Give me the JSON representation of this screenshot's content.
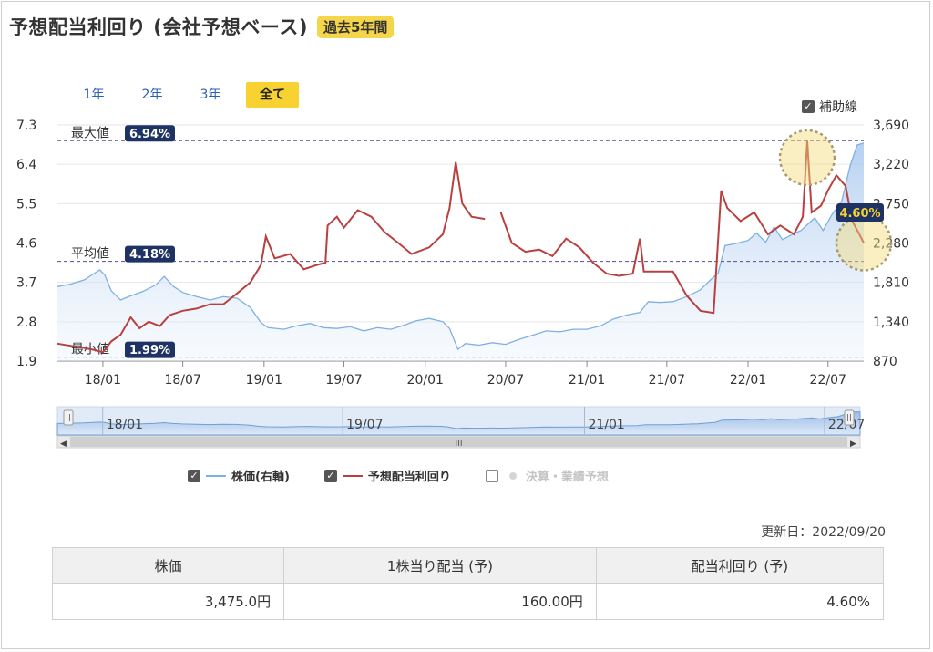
{
  "header": {
    "title": "予想配当利回り (会社予想ベース)",
    "period_badge": "過去5年間"
  },
  "range_tabs": [
    {
      "label": "1年",
      "active": false
    },
    {
      "label": "2年",
      "active": false
    },
    {
      "label": "3年",
      "active": false
    },
    {
      "label": "全て",
      "active": true
    }
  ],
  "aux_toggle": {
    "label": "補助線",
    "checked": true
  },
  "chart_data": {
    "type": "line",
    "left_axis": {
      "ticks": [
        "7.3",
        "6.4",
        "5.5",
        "4.6",
        "3.7",
        "2.8",
        "1.9"
      ],
      "min": 1.9,
      "max": 7.3
    },
    "right_axis": {
      "ticks": [
        "3,690",
        "3,220",
        "2,750",
        "2,280",
        "1,810",
        "1,340",
        "870"
      ],
      "min": 870,
      "max": 3690
    },
    "x_labels": [
      "18/01",
      "18/07",
      "19/01",
      "19/07",
      "20/01",
      "20/07",
      "21/01",
      "21/07",
      "22/01",
      "22/07"
    ],
    "reference_lines": [
      {
        "label": "最大値",
        "value": 6.94,
        "badge": "6.94%"
      },
      {
        "label": "平均値",
        "value": 4.18,
        "badge": "4.18%"
      },
      {
        "label": "最小値",
        "value": 1.99,
        "badge": "1.99%"
      }
    ],
    "current_badge": "4.60%",
    "series": [
      {
        "name": "株価(右軸)",
        "color": "#7fb0e2",
        "axis": "right",
        "points": [
          [
            "2017-09-20",
            1760
          ],
          [
            "2017-10-20",
            1790
          ],
          [
            "2017-11-20",
            1840
          ],
          [
            "2017-12-10",
            1910
          ],
          [
            "2017-12-25",
            1960
          ],
          [
            "2018-01-05",
            1900
          ],
          [
            "2018-01-20",
            1710
          ],
          [
            "2018-02-10",
            1600
          ],
          [
            "2018-03-05",
            1650
          ],
          [
            "2018-04-01",
            1700
          ],
          [
            "2018-05-01",
            1780
          ],
          [
            "2018-05-20",
            1880
          ],
          [
            "2018-06-10",
            1760
          ],
          [
            "2018-07-01",
            1690
          ],
          [
            "2018-08-01",
            1640
          ],
          [
            "2018-09-01",
            1600
          ],
          [
            "2018-10-01",
            1640
          ],
          [
            "2018-11-01",
            1620
          ],
          [
            "2018-12-01",
            1510
          ],
          [
            "2018-12-25",
            1330
          ],
          [
            "2019-01-10",
            1270
          ],
          [
            "2019-02-15",
            1250
          ],
          [
            "2019-03-15",
            1290
          ],
          [
            "2019-04-15",
            1320
          ],
          [
            "2019-05-15",
            1270
          ],
          [
            "2019-06-15",
            1260
          ],
          [
            "2019-07-15",
            1280
          ],
          [
            "2019-08-15",
            1230
          ],
          [
            "2019-09-15",
            1270
          ],
          [
            "2019-10-15",
            1250
          ],
          [
            "2019-11-15",
            1300
          ],
          [
            "2019-12-10",
            1350
          ],
          [
            "2020-01-10",
            1380
          ],
          [
            "2020-02-10",
            1340
          ],
          [
            "2020-02-25",
            1260
          ],
          [
            "2020-03-15",
            1010
          ],
          [
            "2020-04-01",
            1080
          ],
          [
            "2020-05-01",
            1060
          ],
          [
            "2020-06-01",
            1090
          ],
          [
            "2020-07-01",
            1070
          ],
          [
            "2020-08-01",
            1130
          ],
          [
            "2020-09-01",
            1180
          ],
          [
            "2020-10-01",
            1230
          ],
          [
            "2020-11-01",
            1220
          ],
          [
            "2020-12-01",
            1250
          ],
          [
            "2021-01-01",
            1250
          ],
          [
            "2021-02-01",
            1290
          ],
          [
            "2021-03-01",
            1370
          ],
          [
            "2021-04-01",
            1420
          ],
          [
            "2021-05-01",
            1450
          ],
          [
            "2021-05-20",
            1580
          ],
          [
            "2021-06-15",
            1570
          ],
          [
            "2021-07-15",
            1580
          ],
          [
            "2021-08-15",
            1640
          ],
          [
            "2021-09-15",
            1720
          ],
          [
            "2021-10-10",
            1850
          ],
          [
            "2021-10-25",
            1920
          ],
          [
            "2021-11-10",
            2250
          ],
          [
            "2021-12-01",
            2270
          ],
          [
            "2022-01-01",
            2310
          ],
          [
            "2022-01-20",
            2400
          ],
          [
            "2022-02-10",
            2290
          ],
          [
            "2022-03-01",
            2470
          ],
          [
            "2022-03-20",
            2320
          ],
          [
            "2022-04-10",
            2380
          ],
          [
            "2022-05-01",
            2430
          ],
          [
            "2022-06-01",
            2580
          ],
          [
            "2022-06-20",
            2430
          ],
          [
            "2022-07-10",
            2620
          ],
          [
            "2022-08-01",
            2780
          ],
          [
            "2022-08-20",
            3200
          ],
          [
            "2022-09-05",
            3450
          ],
          [
            "2022-09-20",
            3475
          ]
        ]
      },
      {
        "name": "予想配当利回り",
        "color": "#b94040",
        "axis": "left",
        "points": [
          [
            "2017-09-20",
            2.3
          ],
          [
            "2017-10-20",
            2.25
          ],
          [
            "2017-11-20",
            2.2
          ],
          [
            "2017-12-15",
            2.15
          ],
          [
            "2018-01-01",
            2.1
          ],
          [
            "2018-01-20",
            2.35
          ],
          [
            "2018-02-10",
            2.5
          ],
          [
            "2018-03-05",
            2.9
          ],
          [
            "2018-03-25",
            2.65
          ],
          [
            "2018-04-15",
            2.8
          ],
          [
            "2018-05-10",
            2.7
          ],
          [
            "2018-06-01",
            2.95
          ],
          [
            "2018-07-01",
            3.05
          ],
          [
            "2018-08-01",
            3.1
          ],
          [
            "2018-09-01",
            3.2
          ],
          [
            "2018-10-01",
            3.2
          ],
          [
            "2018-11-01",
            3.45
          ],
          [
            "2018-12-01",
            3.7
          ],
          [
            "2018-12-25",
            4.1
          ],
          [
            "2019-01-05",
            4.75
          ],
          [
            "2019-01-25",
            4.25
          ],
          [
            "2019-03-01",
            4.35
          ],
          [
            "2019-04-01",
            4.0
          ],
          [
            "2019-05-01",
            4.1
          ],
          [
            "2019-05-20",
            4.15
          ],
          [
            "2019-05-25",
            5.0
          ],
          [
            "2019-06-15",
            5.2
          ],
          [
            "2019-07-01",
            4.95
          ],
          [
            "2019-08-01",
            5.35
          ],
          [
            "2019-09-01",
            5.2
          ],
          [
            "2019-10-01",
            4.85
          ],
          [
            "2019-11-01",
            4.6
          ],
          [
            "2019-12-01",
            4.35
          ],
          [
            "2020-01-10",
            4.5
          ],
          [
            "2020-02-10",
            4.8
          ],
          [
            "2020-02-25",
            5.4
          ],
          [
            "2020-03-10",
            6.45
          ],
          [
            "2020-03-25",
            5.5
          ],
          [
            "2020-04-15",
            5.2
          ],
          [
            "2020-05-15",
            5.15
          ],
          [
            "2020-06-10",
            null
          ],
          [
            "2020-06-20",
            5.3
          ],
          [
            "2020-07-15",
            4.6
          ],
          [
            "2020-08-15",
            4.4
          ],
          [
            "2020-09-15",
            4.45
          ],
          [
            "2020-10-15",
            4.3
          ],
          [
            "2020-11-15",
            4.7
          ],
          [
            "2020-12-15",
            4.5
          ],
          [
            "2021-01-15",
            4.15
          ],
          [
            "2021-02-15",
            3.9
          ],
          [
            "2021-03-15",
            3.85
          ],
          [
            "2021-04-15",
            3.9
          ],
          [
            "2021-05-01",
            4.7
          ],
          [
            "2021-05-10",
            3.95
          ],
          [
            "2021-06-15",
            3.95
          ],
          [
            "2021-07-15",
            3.95
          ],
          [
            "2021-08-15",
            3.4
          ],
          [
            "2021-09-15",
            3.05
          ],
          [
            "2021-10-15",
            3.0
          ],
          [
            "2021-11-01",
            5.8
          ],
          [
            "2021-11-15",
            5.4
          ],
          [
            "2021-12-15",
            5.1
          ],
          [
            "2022-01-15",
            5.3
          ],
          [
            "2022-02-15",
            4.8
          ],
          [
            "2022-03-15",
            5.0
          ],
          [
            "2022-04-15",
            4.8
          ],
          [
            "2022-05-05",
            5.2
          ],
          [
            "2022-05-15",
            6.94
          ],
          [
            "2022-05-25",
            5.3
          ],
          [
            "2022-06-15",
            5.45
          ],
          [
            "2022-07-01",
            5.8
          ],
          [
            "2022-07-20",
            6.15
          ],
          [
            "2022-08-10",
            5.9
          ],
          [
            "2022-08-25",
            5.1
          ],
          [
            "2022-09-10",
            4.8
          ],
          [
            "2022-09-20",
            4.6
          ]
        ]
      }
    ]
  },
  "navigator": {
    "labels": [
      "18/01",
      "19/07",
      "21/01",
      "22/07"
    ],
    "scroll_grip": "III"
  },
  "legend": [
    {
      "label": "株価(右軸)",
      "checked": true,
      "color": "#7fb0e2"
    },
    {
      "label": "予想配当利回り",
      "checked": true,
      "color": "#b94040"
    },
    {
      "label": "決算・業績予想",
      "checked": false,
      "color": "#d5d5d5"
    }
  ],
  "updated": "更新日：2022/09/20",
  "summary_table": {
    "headers": [
      "株価",
      "1株当り配当 (予)",
      "配当利回り (予)"
    ],
    "values": [
      "3,475.0円",
      "160.00円",
      "4.60%"
    ]
  }
}
